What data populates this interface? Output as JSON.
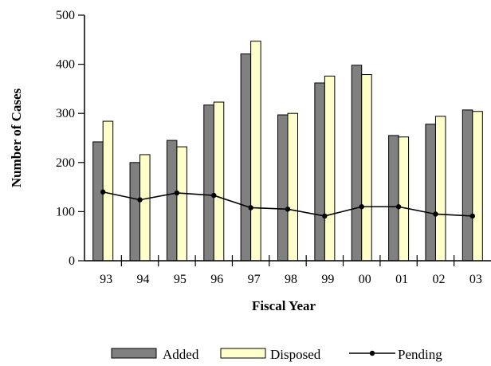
{
  "chart_data": {
    "type": "bar",
    "title": "",
    "xlabel": "Fiscal Year",
    "ylabel": "Number of Cases",
    "categories": [
      "93",
      "94",
      "95",
      "96",
      "97",
      "98",
      "99",
      "00",
      "01",
      "02",
      "03"
    ],
    "ylim": [
      0,
      500
    ],
    "yticks": [
      0,
      100,
      200,
      300,
      400,
      500
    ],
    "grid": false,
    "legend_position": "bottom",
    "series": [
      {
        "name": "Added",
        "type": "bar",
        "color": "#808080",
        "values": [
          242,
          200,
          245,
          317,
          421,
          297,
          362,
          398,
          255,
          278,
          307
        ]
      },
      {
        "name": "Disposed",
        "type": "bar",
        "color": "#ffffcc",
        "values": [
          284,
          216,
          232,
          323,
          447,
          300,
          376,
          379,
          252,
          294,
          304
        ]
      },
      {
        "name": "Pending",
        "type": "line",
        "color": "#000000",
        "values": [
          140,
          124,
          138,
          133,
          108,
          105,
          91,
          110,
          110,
          95,
          91
        ]
      }
    ]
  }
}
